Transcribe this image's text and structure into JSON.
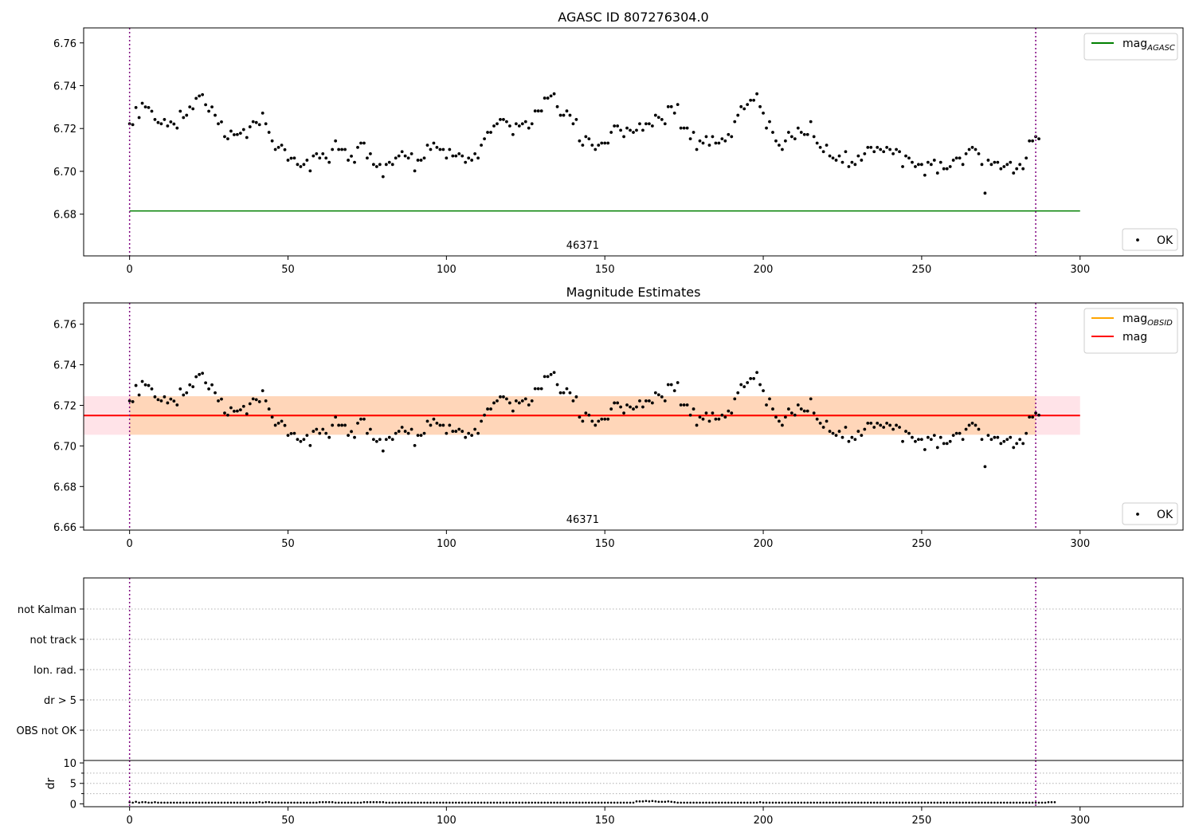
{
  "chart_data": [
    {
      "type": "scatter",
      "title": "AGASC ID 807276304.0",
      "xlim": [
        -14.5,
        332.5
      ],
      "ylim": [
        6.6605,
        6.767
      ],
      "xticks": [
        0,
        50,
        100,
        150,
        200,
        250,
        300
      ],
      "yticks": [
        6.68,
        6.7,
        6.72,
        6.74,
        6.76
      ],
      "vlines": [
        0,
        286
      ],
      "obsid_label": {
        "text": "46371",
        "x": 143
      },
      "hlines": [
        {
          "name": "mag",
          "sub": "AGASC",
          "y": 6.6815,
          "x0": 0,
          "x1": 300,
          "color": "#008000"
        }
      ],
      "series_name": "OK",
      "grid": false,
      "legend": [
        "top-right",
        "bottom-right"
      ]
    },
    {
      "type": "scatter",
      "title": "Magnitude Estimates",
      "xlim": [
        -14.5,
        332.5
      ],
      "ylim": [
        6.6585,
        6.7705
      ],
      "xticks": [
        0,
        50,
        100,
        150,
        200,
        250,
        300
      ],
      "yticks": [
        6.66,
        6.68,
        6.7,
        6.72,
        6.74,
        6.76
      ],
      "vlines": [
        0,
        286
      ],
      "obsid_label": {
        "text": "46371",
        "x": 143
      },
      "hlines": [
        {
          "name": "mag",
          "sub": "OBSID",
          "y": 6.715,
          "x0": 0,
          "x1": 286,
          "color": "#ffa500"
        },
        {
          "name": "mag",
          "sub": "",
          "y": 6.715,
          "x0": -14.5,
          "x1": 300,
          "color": "#ff0000"
        }
      ],
      "bands": [
        {
          "y0": 6.7055,
          "y1": 6.7245,
          "x0": -14.5,
          "x1": 300,
          "color": "#ffc0cb",
          "opacity": 0.45
        },
        {
          "y0": 6.7055,
          "y1": 6.7245,
          "x0": 0,
          "x1": 286,
          "color": "#ffa500",
          "opacity": 0.2
        }
      ],
      "series_name": "OK",
      "grid": false,
      "legend": [
        "top-right",
        "bottom-right"
      ]
    },
    {
      "type": "scatter",
      "title": "",
      "categories": [
        "not Kalman",
        "not track",
        "Ion. rad.",
        "dr > 5",
        "OBS not OK"
      ],
      "xlim": [
        -14.5,
        332.5
      ],
      "vlines": [
        0,
        286
      ],
      "grid": true
    },
    {
      "type": "scatter",
      "title": "",
      "ylabel": "dr",
      "xlim": [
        -14.5,
        332.5
      ],
      "ylim": [
        -0.7,
        10.6
      ],
      "yticks": [
        0,
        5,
        10
      ],
      "xticks": [
        0,
        50,
        100,
        150,
        200,
        250,
        300
      ],
      "vlines": [
        0,
        286
      ],
      "grid": true
    }
  ],
  "mag_points": [
    [
      0,
      6.7222
    ],
    [
      1,
      6.7218
    ],
    [
      2,
      6.7298
    ],
    [
      3,
      6.7251
    ],
    [
      4,
      6.7318
    ],
    [
      5,
      6.7301
    ],
    [
      6,
      6.7298
    ],
    [
      7,
      6.7281
    ],
    [
      8,
      6.7242
    ],
    [
      9,
      6.7228
    ],
    [
      10,
      6.7222
    ],
    [
      11,
      6.7242
    ],
    [
      12,
      6.7212
    ],
    [
      13,
      6.7231
    ],
    [
      14,
      6.7221
    ],
    [
      15,
      6.7202
    ],
    [
      16,
      6.7281
    ],
    [
      17,
      6.7251
    ],
    [
      18,
      6.7262
    ],
    [
      19,
      6.7301
    ],
    [
      20,
      6.7292
    ],
    [
      21,
      6.7341
    ],
    [
      22,
      6.7352
    ],
    [
      23,
      6.7358
    ],
    [
      24,
      6.7311
    ],
    [
      25,
      6.7281
    ],
    [
      26,
      6.7301
    ],
    [
      27,
      6.7262
    ],
    [
      28,
      6.7222
    ],
    [
      29,
      6.7231
    ],
    [
      30,
      6.7162
    ],
    [
      31,
      6.7152
    ],
    [
      32,
      6.7188
    ],
    [
      33,
      6.7171
    ],
    [
      34,
      6.7172
    ],
    [
      35,
      6.7178
    ],
    [
      36,
      6.7195
    ],
    [
      37,
      6.7158
    ],
    [
      38,
      6.7208
    ],
    [
      39,
      6.7232
    ],
    [
      40,
      6.7228
    ],
    [
      41,
      6.7218
    ],
    [
      42,
      6.7272
    ],
    [
      43,
      6.7222
    ],
    [
      44,
      6.7182
    ],
    [
      45,
      6.7142
    ],
    [
      46,
      6.7102
    ],
    [
      47,
      6.7112
    ],
    [
      48,
      6.7122
    ],
    [
      49,
      6.7101
    ],
    [
      50,
      6.7052
    ],
    [
      51,
      6.7061
    ],
    [
      52,
      6.7062
    ],
    [
      53,
      6.7032
    ],
    [
      54,
      6.7022
    ],
    [
      55,
      6.7032
    ],
    [
      56,
      6.7052
    ],
    [
      57,
      6.7002
    ],
    [
      58,
      6.7072
    ],
    [
      59,
      6.7082
    ],
    [
      60,
      6.7062
    ],
    [
      61,
      6.7082
    ],
    [
      62,
      6.7062
    ],
    [
      63,
      6.7042
    ],
    [
      64,
      6.7102
    ],
    [
      65,
      6.7142
    ],
    [
      66,
      6.7102
    ],
    [
      67,
      6.7102
    ],
    [
      68,
      6.7102
    ],
    [
      69,
      6.7052
    ],
    [
      70,
      6.7071
    ],
    [
      71,
      6.7042
    ],
    [
      72,
      6.7112
    ],
    [
      73,
      6.7132
    ],
    [
      74,
      6.7132
    ],
    [
      75,
      6.7062
    ],
    [
      76,
      6.7082
    ],
    [
      77,
      6.7032
    ],
    [
      78,
      6.7022
    ],
    [
      79,
      6.7032
    ],
    [
      80,
      6.6975
    ],
    [
      81,
      6.7032
    ],
    [
      82,
      6.7042
    ],
    [
      83,
      6.7032
    ],
    [
      84,
      6.7062
    ],
    [
      85,
      6.7072
    ],
    [
      86,
      6.7092
    ],
    [
      87,
      6.7072
    ],
    [
      88,
      6.7062
    ],
    [
      89,
      6.7082
    ],
    [
      90,
      6.7002
    ],
    [
      91,
      6.7052
    ],
    [
      92,
      6.7052
    ],
    [
      93,
      6.7062
    ],
    [
      94,
      6.7122
    ],
    [
      95,
      6.7102
    ],
    [
      96,
      6.7132
    ],
    [
      97,
      6.7112
    ],
    [
      98,
      6.7102
    ],
    [
      99,
      6.7102
    ],
    [
      100,
      6.7062
    ],
    [
      101,
      6.7102
    ],
    [
      102,
      6.7072
    ],
    [
      103,
      6.7072
    ],
    [
      104,
      6.7082
    ],
    [
      105,
      6.7072
    ],
    [
      106,
      6.7042
    ],
    [
      107,
      6.7062
    ],
    [
      108,
      6.7052
    ],
    [
      109,
      6.7082
    ],
    [
      110,
      6.7062
    ],
    [
      111,
      6.7122
    ],
    [
      112,
      6.7152
    ],
    [
      113,
      6.7182
    ],
    [
      114,
      6.7182
    ],
    [
      115,
      6.7212
    ],
    [
      116,
      6.7222
    ],
    [
      117,
      6.7242
    ],
    [
      118,
      6.7242
    ],
    [
      119,
      6.7232
    ],
    [
      120,
      6.7212
    ],
    [
      121,
      6.7172
    ],
    [
      122,
      6.7222
    ],
    [
      123,
      6.7212
    ],
    [
      124,
      6.7222
    ],
    [
      125,
      6.7232
    ],
    [
      126,
      6.7202
    ],
    [
      127,
      6.7222
    ],
    [
      128,
      6.7282
    ],
    [
      129,
      6.7282
    ],
    [
      130,
      6.7282
    ],
    [
      131,
      6.7342
    ],
    [
      132,
      6.7342
    ],
    [
      133,
      6.7352
    ],
    [
      134,
      6.7362
    ],
    [
      135,
      6.7302
    ],
    [
      136,
      6.7262
    ],
    [
      137,
      6.7262
    ],
    [
      138,
      6.7282
    ],
    [
      139,
      6.7262
    ],
    [
      140,
      6.7222
    ],
    [
      141,
      6.7242
    ],
    [
      142,
      6.7142
    ],
    [
      143,
      6.7122
    ],
    [
      144,
      6.7162
    ],
    [
      145,
      6.7152
    ],
    [
      146,
      6.7122
    ],
    [
      147,
      6.7102
    ],
    [
      148,
      6.7122
    ],
    [
      149,
      6.7132
    ],
    [
      150,
      6.7132
    ],
    [
      151,
      6.7132
    ],
    [
      152,
      6.7182
    ],
    [
      153,
      6.7212
    ],
    [
      154,
      6.7212
    ],
    [
      155,
      6.7192
    ],
    [
      156,
      6.7162
    ],
    [
      157,
      6.7202
    ],
    [
      158,
      6.7192
    ],
    [
      159,
      6.7182
    ],
    [
      160,
      6.7192
    ],
    [
      161,
      6.7222
    ],
    [
      162,
      6.7192
    ],
    [
      163,
      6.7222
    ],
    [
      164,
      6.7222
    ],
    [
      165,
      6.7212
    ],
    [
      166,
      6.7262
    ],
    [
      167,
      6.7252
    ],
    [
      168,
      6.7242
    ],
    [
      169,
      6.7222
    ],
    [
      170,
      6.7302
    ],
    [
      171,
      6.7302
    ],
    [
      172,
      6.7272
    ],
    [
      173,
      6.7312
    ],
    [
      174,
      6.7202
    ],
    [
      175,
      6.7202
    ],
    [
      176,
      6.7202
    ],
    [
      177,
      6.7152
    ],
    [
      178,
      6.7182
    ],
    [
      179,
      6.7102
    ],
    [
      180,
      6.7142
    ],
    [
      181,
      6.7132
    ],
    [
      182,
      6.7162
    ],
    [
      183,
      6.7122
    ],
    [
      184,
      6.7162
    ],
    [
      185,
      6.7132
    ],
    [
      186,
      6.7132
    ],
    [
      187,
      6.7152
    ],
    [
      188,
      6.7142
    ],
    [
      189,
      6.7172
    ],
    [
      190,
      6.7162
    ],
    [
      191,
      6.7232
    ],
    [
      192,
      6.7262
    ],
    [
      193,
      6.7302
    ],
    [
      194,
      6.7292
    ],
    [
      195,
      6.7312
    ],
    [
      196,
      6.7332
    ],
    [
      197,
      6.7332
    ],
    [
      198,
      6.7362
    ],
    [
      199,
      6.7302
    ],
    [
      200,
      6.7272
    ],
    [
      201,
      6.7202
    ],
    [
      202,
      6.7232
    ],
    [
      203,
      6.7182
    ],
    [
      204,
      6.7142
    ],
    [
      205,
      6.7122
    ],
    [
      206,
      6.7102
    ],
    [
      207,
      6.7142
    ],
    [
      208,
      6.7182
    ],
    [
      209,
      6.7162
    ],
    [
      210,
      6.7152
    ],
    [
      211,
      6.7202
    ],
    [
      212,
      6.7182
    ],
    [
      213,
      6.7172
    ],
    [
      214,
      6.7172
    ],
    [
      215,
      6.7232
    ],
    [
      216,
      6.7162
    ],
    [
      217,
      6.7132
    ],
    [
      218,
      6.7112
    ],
    [
      219,
      6.7092
    ],
    [
      220,
      6.7122
    ],
    [
      221,
      6.7072
    ],
    [
      222,
      6.7062
    ],
    [
      223,
      6.7052
    ],
    [
      224,
      6.7072
    ],
    [
      225,
      6.7042
    ],
    [
      226,
      6.7092
    ],
    [
      227,
      6.7022
    ],
    [
      228,
      6.7042
    ],
    [
      229,
      6.7032
    ],
    [
      230,
      6.7072
    ],
    [
      231,
      6.7052
    ],
    [
      232,
      6.7082
    ],
    [
      233,
      6.7112
    ],
    [
      234,
      6.7112
    ],
    [
      235,
      6.7092
    ],
    [
      236,
      6.7112
    ],
    [
      237,
      6.7102
    ],
    [
      238,
      6.7092
    ],
    [
      239,
      6.7112
    ],
    [
      240,
      6.7102
    ],
    [
      241,
      6.7082
    ],
    [
      242,
      6.7102
    ],
    [
      243,
      6.7092
    ],
    [
      244,
      6.7022
    ],
    [
      245,
      6.7072
    ],
    [
      246,
      6.7062
    ],
    [
      247,
      6.7042
    ],
    [
      248,
      6.7022
    ],
    [
      249,
      6.7032
    ],
    [
      250,
      6.7032
    ],
    [
      251,
      6.6982
    ],
    [
      252,
      6.7042
    ],
    [
      253,
      6.7032
    ],
    [
      254,
      6.7052
    ],
    [
      255,
      6.6992
    ],
    [
      256,
      6.7042
    ],
    [
      257,
      6.7012
    ],
    [
      258,
      6.7012
    ],
    [
      259,
      6.7022
    ],
    [
      260,
      6.7052
    ],
    [
      261,
      6.7062
    ],
    [
      262,
      6.7062
    ],
    [
      263,
      6.7032
    ],
    [
      264,
      6.7082
    ],
    [
      265,
      6.7102
    ],
    [
      266,
      6.7112
    ],
    [
      267,
      6.7102
    ],
    [
      268,
      6.7082
    ],
    [
      269,
      6.7032
    ],
    [
      270,
      6.6898
    ],
    [
      271,
      6.7052
    ],
    [
      272,
      6.7032
    ],
    [
      273,
      6.7042
    ],
    [
      274,
      6.7042
    ],
    [
      275,
      6.7012
    ],
    [
      276,
      6.7022
    ],
    [
      277,
      6.7032
    ],
    [
      278,
      6.7042
    ],
    [
      279,
      6.6992
    ],
    [
      280,
      6.7012
    ],
    [
      281,
      6.7032
    ],
    [
      282,
      6.7012
    ],
    [
      283,
      6.7062
    ],
    [
      284,
      6.7142
    ],
    [
      285,
      6.7142
    ],
    [
      286,
      6.7162
    ],
    [
      287,
      6.7152
    ]
  ],
  "dr_values": [
    0.4,
    0.3,
    0.5,
    0.3,
    0.4,
    0.4,
    0.3,
    0.3,
    0.4,
    0.3,
    0.3,
    0.3,
    0.3,
    0.3,
    0.3,
    0.3,
    0.3,
    0.3,
    0.3,
    0.3,
    0.3,
    0.3,
    0.3,
    0.3,
    0.3,
    0.3,
    0.3,
    0.3,
    0.3,
    0.3,
    0.3,
    0.3,
    0.3,
    0.3,
    0.3,
    0.3,
    0.3,
    0.3,
    0.3,
    0.3,
    0.3,
    0.4,
    0.3,
    0.4,
    0.4,
    0.3,
    0.3,
    0.3,
    0.3,
    0.3,
    0.3,
    0.3,
    0.3,
    0.3,
    0.3,
    0.3,
    0.3,
    0.3,
    0.3,
    0.3,
    0.4,
    0.4,
    0.4,
    0.4,
    0.4,
    0.3,
    0.3,
    0.3,
    0.3,
    0.3,
    0.3,
    0.3,
    0.3,
    0.3,
    0.4,
    0.4,
    0.4,
    0.4,
    0.4,
    0.4,
    0.4,
    0.3,
    0.3,
    0.3,
    0.3,
    0.3,
    0.3,
    0.3,
    0.3,
    0.3,
    0.3,
    0.3,
    0.3,
    0.3,
    0.3,
    0.3,
    0.3,
    0.3,
    0.3,
    0.3,
    0.3,
    0.3,
    0.3,
    0.3,
    0.3,
    0.3,
    0.3,
    0.3,
    0.3,
    0.3,
    0.3,
    0.3,
    0.3,
    0.3,
    0.3,
    0.3,
    0.3,
    0.3,
    0.3,
    0.3,
    0.3,
    0.3,
    0.3,
    0.3,
    0.3,
    0.3,
    0.3,
    0.3,
    0.3,
    0.3,
    0.3,
    0.3,
    0.3,
    0.3,
    0.3,
    0.3,
    0.3,
    0.3,
    0.3,
    0.3,
    0.3,
    0.3,
    0.3,
    0.3,
    0.3,
    0.3,
    0.3,
    0.3,
    0.3,
    0.3,
    0.3,
    0.3,
    0.3,
    0.3,
    0.3,
    0.3,
    0.3,
    0.3,
    0.3,
    0.3,
    0.6,
    0.6,
    0.6,
    0.7,
    0.6,
    0.7,
    0.6,
    0.5,
    0.5,
    0.5,
    0.6,
    0.5,
    0.4,
    0.3,
    0.3,
    0.3,
    0.3,
    0.3,
    0.3,
    0.3,
    0.3,
    0.3,
    0.3,
    0.3,
    0.3,
    0.3,
    0.3,
    0.3,
    0.3,
    0.3,
    0.3,
    0.3,
    0.3,
    0.3,
    0.3,
    0.3,
    0.3,
    0.3,
    0.3,
    0.4,
    0.3,
    0.3,
    0.3,
    0.3,
    0.3,
    0.3,
    0.3,
    0.3,
    0.3,
    0.3,
    0.3,
    0.3,
    0.3,
    0.3,
    0.3,
    0.3,
    0.3,
    0.3,
    0.3,
    0.3,
    0.3,
    0.3,
    0.3,
    0.3,
    0.3,
    0.3,
    0.3,
    0.3,
    0.3,
    0.3,
    0.3,
    0.3,
    0.3,
    0.3,
    0.3,
    0.3,
    0.3,
    0.3,
    0.3,
    0.3,
    0.3,
    0.3,
    0.3,
    0.3,
    0.3,
    0.3,
    0.3,
    0.3,
    0.3,
    0.3,
    0.3,
    0.3,
    0.3,
    0.3,
    0.3,
    0.3,
    0.3,
    0.3,
    0.3,
    0.3,
    0.3,
    0.3,
    0.3,
    0.3,
    0.3,
    0.3,
    0.3,
    0.3,
    0.3,
    0.3,
    0.3,
    0.3,
    0.3,
    0.3,
    0.3,
    0.3,
    0.3,
    0.3,
    0.3,
    0.3,
    0.3,
    0.3,
    0.3,
    0.3,
    0.3,
    0.3,
    0.3,
    0.3,
    0.3,
    0.3,
    0.4,
    0.4,
    0.4
  ]
}
